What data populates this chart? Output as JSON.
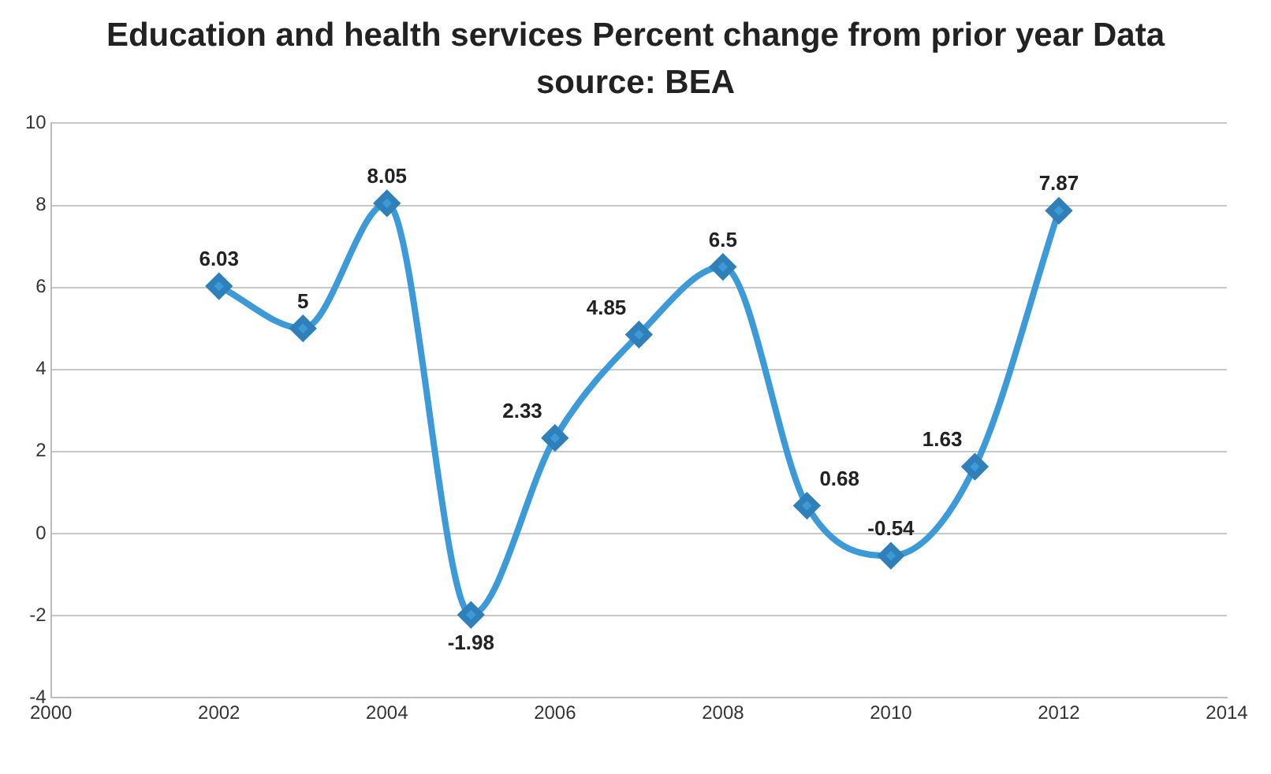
{
  "chart_data": {
    "type": "line",
    "title": "Education and health services Percent change from prior year Data source:  BEA",
    "x": [
      2002,
      2003,
      2004,
      2005,
      2006,
      2007,
      2008,
      2009,
      2010,
      2011,
      2012
    ],
    "series": [
      {
        "color": "#3c9ad8",
        "values": [
          6.03,
          5,
          8.05,
          -1.98,
          2.33,
          4.85,
          6.5,
          0.68,
          -0.54,
          1.63,
          7.87
        ]
      }
    ],
    "xlim": [
      2000,
      2014
    ],
    "xticks": [
      2000,
      2002,
      2004,
      2006,
      2008,
      2010,
      2012,
      2014
    ],
    "ylim": [
      -4,
      10
    ],
    "yticks": [
      -4,
      -2,
      0,
      2,
      4,
      6,
      8,
      10
    ],
    "grid": "y",
    "legend": false,
    "marker": "diamond",
    "line_style": "solid",
    "data_labels": true
  }
}
